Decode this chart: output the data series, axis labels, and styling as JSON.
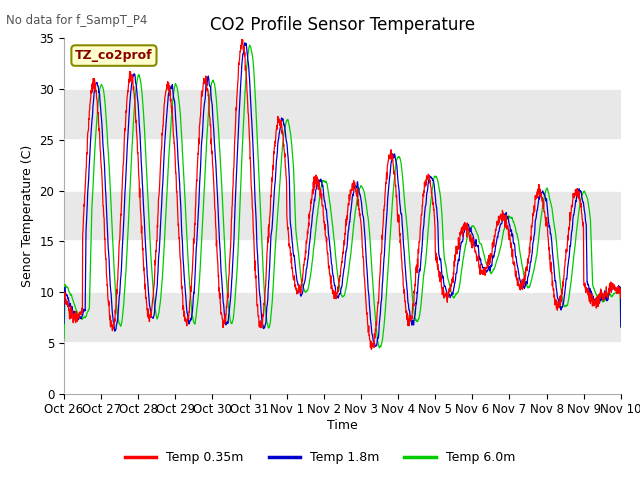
{
  "title": "CO2 Profile Sensor Temperature",
  "subtitle": "No data for f_SampT_P4",
  "ylabel": "Senor Temperature (C)",
  "xlabel": "Time",
  "ylim": [
    0,
    35
  ],
  "legend_label": "TZ_co2prof",
  "series_labels": [
    "Temp 0.35m",
    "Temp 1.8m",
    "Temp 6.0m"
  ],
  "series_colors": [
    "#ff0000",
    "#0000cc",
    "#00cc00"
  ],
  "xtick_labels": [
    "Oct 26",
    "Oct 27",
    "Oct 28",
    "Oct 29",
    "Oct 30",
    "Oct 31",
    "Nov 1",
    "Nov 2",
    "Nov 3",
    "Nov 4",
    "Nov 5",
    "Nov 6",
    "Nov 7",
    "Nov 8",
    "Nov 9",
    "Nov 10"
  ],
  "bg_color": "#ffffff",
  "band_color": "#e8e8e8",
  "title_fontsize": 12,
  "label_fontsize": 9,
  "tick_fontsize": 8.5,
  "band_ranges": [
    [
      25,
      30
    ],
    [
      15,
      20
    ],
    [
      5,
      10
    ]
  ]
}
